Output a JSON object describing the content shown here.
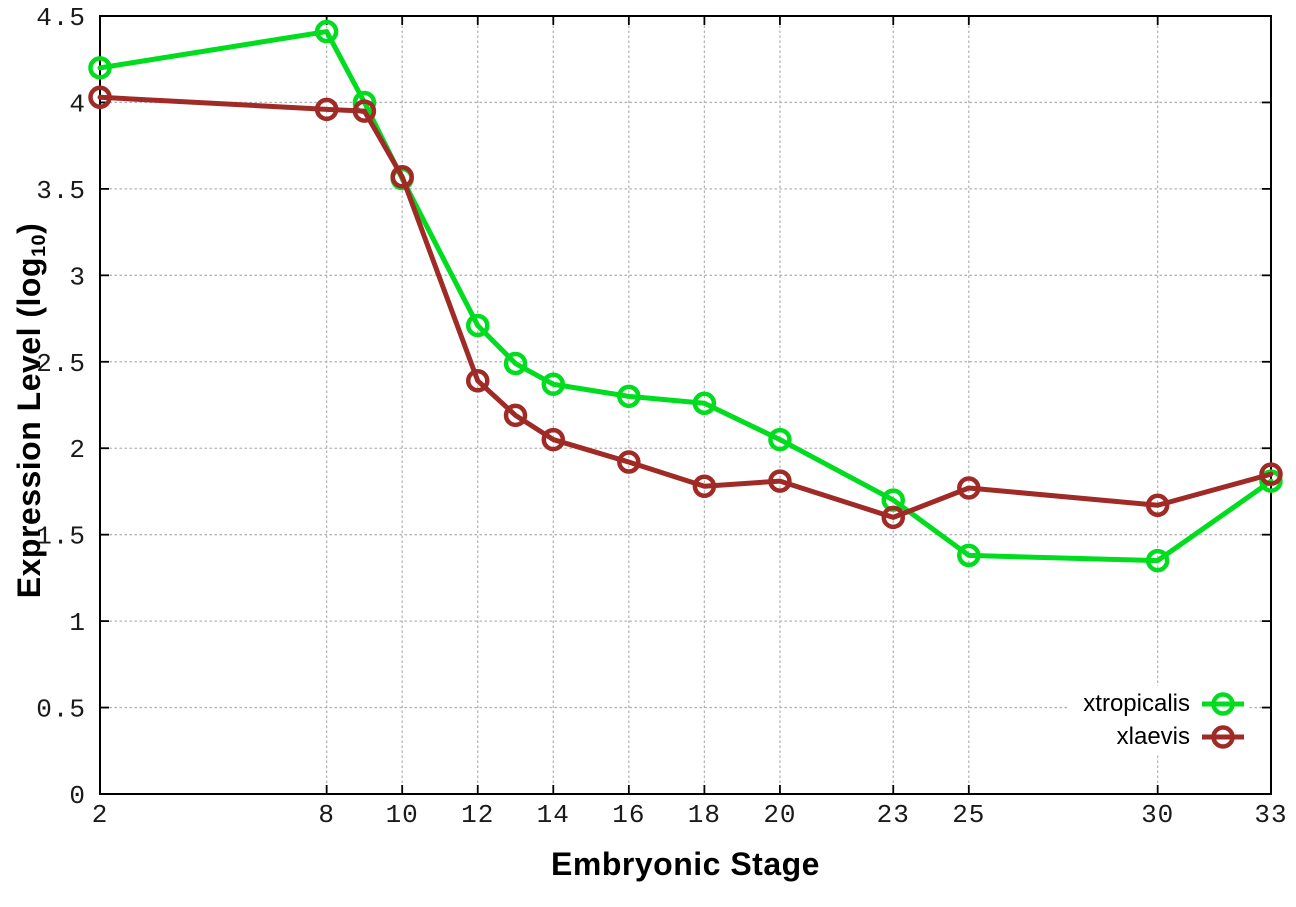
{
  "chart_data": {
    "type": "line",
    "title": "",
    "xlabel": "Embryonic Stage",
    "ylabel_prefix": "Expression Level (log",
    "ylabel_sub": "10",
    "ylabel_suffix": ")",
    "xlim": [
      2,
      33
    ],
    "ylim": [
      0,
      4.5
    ],
    "grid": true,
    "legend_position": "bottom-right",
    "marker": "open-circle",
    "x": [
      2,
      8,
      9,
      10,
      12,
      13,
      14,
      16,
      18,
      20,
      23,
      25,
      30,
      33
    ],
    "series": [
      {
        "name": "xtropicalis",
        "color": "#00dc1e",
        "values": [
          4.2,
          4.41,
          4.0,
          3.56,
          2.71,
          2.49,
          2.37,
          2.3,
          2.26,
          2.05,
          1.7,
          1.38,
          1.35,
          1.81
        ]
      },
      {
        "name": "xlaevis",
        "color": "#a02a26",
        "values": [
          4.03,
          3.96,
          3.95,
          3.57,
          2.39,
          2.19,
          2.05,
          1.92,
          1.78,
          1.81,
          1.6,
          1.77,
          1.67,
          1.85
        ]
      }
    ],
    "xticks": {
      "values": [
        2,
        8,
        10,
        12,
        14,
        16,
        18,
        20,
        23,
        25,
        30,
        33
      ],
      "labels": [
        "2",
        "8",
        "10",
        "12",
        "14",
        "16",
        "18",
        "20",
        "23",
        "25",
        "30",
        "33"
      ]
    },
    "yticks": {
      "values": [
        0,
        0.5,
        1,
        1.5,
        2,
        2.5,
        3,
        3.5,
        4,
        4.5
      ],
      "labels": [
        "0",
        "0.5",
        "1",
        "1.5",
        "2",
        "2.5",
        "3",
        "3.5",
        "4",
        "4.5"
      ]
    }
  },
  "colors": {
    "grid": "#b3b3b3",
    "axis": "#000000",
    "tick_text": "#1a1a1a"
  }
}
